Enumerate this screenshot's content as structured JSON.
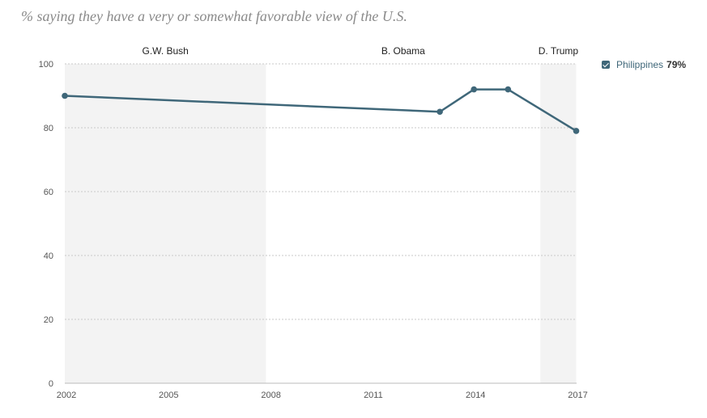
{
  "chart_data": {
    "type": "line",
    "title": "% saying they have a very or somewhat favorable view of the U.S.",
    "x_ticks": [
      "2002",
      "2005",
      "2008",
      "2011",
      "2014",
      "2017"
    ],
    "y_ticks": [
      "0",
      "20",
      "40",
      "60",
      "80",
      "100"
    ],
    "ylim": [
      0,
      100
    ],
    "xlim": [
      2002,
      2017
    ],
    "eras": [
      {
        "label": "G.W. Bush",
        "start": 2001.85,
        "end": 2007.9,
        "shaded": true
      },
      {
        "label": "B. Obama",
        "start": 2007.9,
        "end": 2015.95,
        "shaded": false
      },
      {
        "label": "D. Trump",
        "start": 2015.95,
        "end": 2017,
        "shaded": true
      }
    ],
    "series": [
      {
        "name": "Philippines",
        "latest_label": "79%",
        "color": "#3f6779",
        "points": [
          {
            "x": 2002,
            "y": 90
          },
          {
            "x": 2013,
            "y": 85
          },
          {
            "x": 2014,
            "y": 92
          },
          {
            "x": 2015,
            "y": 92
          },
          {
            "x": 2017,
            "y": 79
          }
        ]
      }
    ]
  }
}
